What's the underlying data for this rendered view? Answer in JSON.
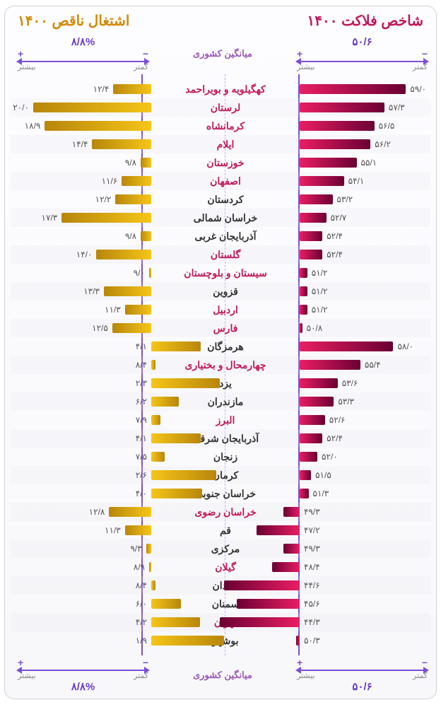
{
  "meta": {
    "title_right": "شاخص فلاکت ۱۴۰۰",
    "title_left": "اشتغال ناقص ۱۴۰۰",
    "center_label": "میانگین کشوری",
    "avg_right": "۵۰/۶",
    "avg_left": "۸/۸%",
    "plus": "+",
    "minus": "−",
    "more": "بیشتر",
    "less": "کمتر",
    "colors": {
      "title_right": "#c2185b",
      "title_left": "#d48806",
      "axis": "#7b4fd8",
      "center_text": "#9b59b6",
      "highlight": "#c2185b",
      "normal": "#333333",
      "bar_right_grad": [
        "#e91e63",
        "#6a0033"
      ],
      "bar_left_grad": [
        "#f5c518",
        "#b8860b"
      ],
      "bg": "#ffffff"
    },
    "right_avg_num": 50.6,
    "left_avg_num": 8.8,
    "right_scale_max_delta": 10,
    "left_scale_max_delta": 12,
    "fontsize_title": 20,
    "fontsize_label": 14,
    "fontsize_value": 12
  },
  "rows": [
    {
      "name": "کهگیلویه و بویراحمد",
      "hl": true,
      "r": 59.0,
      "rlab": "۵۹/۰",
      "l": 12.4,
      "llab": "۱۲/۴"
    },
    {
      "name": "لرستان",
      "hl": true,
      "r": 57.3,
      "rlab": "۵۷/۳",
      "l": 20.0,
      "llab": "۲۰/۰"
    },
    {
      "name": "کرمانشاه",
      "hl": true,
      "r": 56.5,
      "rlab": "۵۶/۵",
      "l": 18.9,
      "llab": "۱۸/۹"
    },
    {
      "name": "ایلام",
      "hl": true,
      "r": 56.2,
      "rlab": "۵۶/۲",
      "l": 14.4,
      "llab": "۱۴/۴"
    },
    {
      "name": "خوزستان",
      "hl": true,
      "r": 55.1,
      "rlab": "۵۵/۱",
      "l": 9.8,
      "llab": "۹/۸"
    },
    {
      "name": "اصفهان",
      "hl": true,
      "r": 54.1,
      "rlab": "۵۴/۱",
      "l": 11.6,
      "llab": "۱۱/۶"
    },
    {
      "name": "کردستان",
      "hl": false,
      "r": 53.2,
      "rlab": "۵۳/۲",
      "l": 12.2,
      "llab": "۱۲/۲"
    },
    {
      "name": "خراسان شمالی",
      "hl": false,
      "r": 52.7,
      "rlab": "۵۲/۷",
      "l": 17.3,
      "llab": "۱۷/۳"
    },
    {
      "name": "آذربایجان غربی",
      "hl": false,
      "r": 52.4,
      "rlab": "۵۲/۴",
      "l": 9.8,
      "llab": "۹/۸"
    },
    {
      "name": "گلستان",
      "hl": true,
      "r": 52.4,
      "rlab": "۵۲/۴",
      "l": 14.0,
      "llab": "۱۴/۰"
    },
    {
      "name": "سیستان و بلوچستان",
      "hl": true,
      "r": 51.2,
      "rlab": "۵۱/۲",
      "l": 9.0,
      "llab": "۹/۰"
    },
    {
      "name": "قزوین",
      "hl": false,
      "r": 51.2,
      "rlab": "۵۱/۲",
      "l": 13.3,
      "llab": "۱۳/۳"
    },
    {
      "name": "اردبیل",
      "hl": true,
      "r": 51.2,
      "rlab": "۵۱/۲",
      "l": 11.3,
      "llab": "۱۱/۳"
    },
    {
      "name": "فارس",
      "hl": true,
      "r": 50.8,
      "rlab": "۵۰/۸",
      "l": 12.5,
      "llab": "۱۲/۵"
    },
    {
      "name": "هرمزگان",
      "hl": false,
      "r": 58.0,
      "rlab": "۵۸/۰",
      "l": 4.1,
      "llab": "۴/۱"
    },
    {
      "name": "چهارمحال و بختیاری",
      "hl": true,
      "r": 55.4,
      "rlab": "۵۵/۴",
      "l": 8.4,
      "llab": "۸/۴"
    },
    {
      "name": "یزد",
      "hl": false,
      "r": 53.6,
      "rlab": "۵۳/۶",
      "l": 2.3,
      "llab": "۲/۳"
    },
    {
      "name": "مازندران",
      "hl": false,
      "r": 53.3,
      "rlab": "۵۳/۳",
      "l": 6.2,
      "llab": "۶/۲"
    },
    {
      "name": "البرز",
      "hl": true,
      "r": 52.6,
      "rlab": "۵۲/۶",
      "l": 7.9,
      "llab": "۷/۹"
    },
    {
      "name": "آذربایجان شرقی",
      "hl": false,
      "r": 52.4,
      "rlab": "۵۲/۴",
      "l": 4.1,
      "llab": "۴/۱"
    },
    {
      "name": "زنجان",
      "hl": false,
      "r": 52.0,
      "rlab": "۵۲/۰",
      "l": 7.5,
      "llab": "۷/۵"
    },
    {
      "name": "کرمان",
      "hl": false,
      "r": 51.5,
      "rlab": "۵۱/۵",
      "l": 2.6,
      "llab": "۲/۶"
    },
    {
      "name": "خراسان جنوبی",
      "hl": false,
      "r": 51.3,
      "rlab": "۵۱/۳",
      "l": 4.0,
      "llab": "۴/۰"
    },
    {
      "name": "خراسان رضوی",
      "hl": true,
      "r": 49.3,
      "rlab": "۴۹/۳",
      "l": 12.8,
      "llab": "۱۲/۸"
    },
    {
      "name": "قم",
      "hl": false,
      "r": 47.2,
      "rlab": "۴۷/۲",
      "l": 11.3,
      "llab": "۱۱/۳"
    },
    {
      "name": "مرکزی",
      "hl": false,
      "r": 49.3,
      "rlab": "۴۹/۳",
      "l": 9.3,
      "llab": "۹/۳"
    },
    {
      "name": "گیلان",
      "hl": true,
      "r": 48.4,
      "rlab": "۴۸/۴",
      "l": 8.9,
      "llab": "۸/۹"
    },
    {
      "name": "همدان",
      "hl": false,
      "r": 44.6,
      "rlab": "۴۴/۶",
      "l": 8.4,
      "llab": "۸/۴"
    },
    {
      "name": "سمنان",
      "hl": false,
      "r": 45.6,
      "rlab": "۴۵/۶",
      "l": 6.0,
      "llab": "۶/۰"
    },
    {
      "name": "تهران",
      "hl": true,
      "r": 44.3,
      "rlab": "۴۴/۳",
      "l": 4.2,
      "llab": "۴/۲"
    },
    {
      "name": "بوشهر",
      "hl": false,
      "r": 50.3,
      "rlab": "۵۰/۳",
      "l": 1.9,
      "llab": "۱/۹"
    }
  ]
}
